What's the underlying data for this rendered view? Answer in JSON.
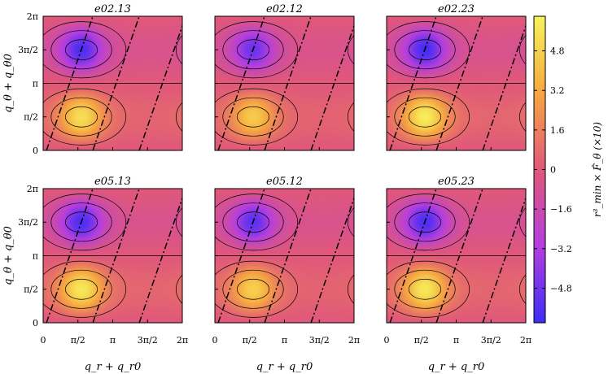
{
  "figure": {
    "xlabel": "q_r + q_r0",
    "ylabel": "q_θ + q_θ0",
    "colorbar_label": "r³_min × F̂_θ (×10)",
    "colorbar_ticks": [
      "4.8",
      "3.2",
      "1.6",
      "0",
      "−1.6",
      "−3.2",
      "−4.8"
    ],
    "x_tick_labels": [
      "0",
      "π/2",
      "π",
      "3π/2",
      "2π"
    ],
    "y_tick_labels": [
      "0",
      "π/2",
      "π",
      "3π/2",
      "2π"
    ]
  },
  "colors": {
    "max": "#f6f35a",
    "high": "#f6a641",
    "mid": "#e0587a",
    "low": "#b43ee0",
    "min": "#3d2cf5"
  },
  "chart_data": [
    {
      "type": "heatmap",
      "title": "e02.13",
      "xlim": [
        0,
        6.283
      ],
      "ylim": [
        0,
        6.283
      ],
      "vmin": -6.2,
      "vmax": 6.2,
      "peak": 5.4,
      "trough": -5.8
    },
    {
      "type": "heatmap",
      "title": "e02.12",
      "xlim": [
        0,
        6.283
      ],
      "ylim": [
        0,
        6.283
      ],
      "vmin": -6.2,
      "vmax": 6.2,
      "peak": 4.6,
      "trough": -5.0
    },
    {
      "type": "heatmap",
      "title": "e02.23",
      "xlim": [
        0,
        6.283
      ],
      "ylim": [
        0,
        6.283
      ],
      "vmin": -6.2,
      "vmax": 6.2,
      "peak": 6.0,
      "trough": -6.0
    },
    {
      "type": "heatmap",
      "title": "e05.13",
      "xlim": [
        0,
        6.283
      ],
      "ylim": [
        0,
        6.283
      ],
      "vmin": -6.2,
      "vmax": 6.2,
      "peak": 5.8,
      "trough": -5.8
    },
    {
      "type": "heatmap",
      "title": "e05.12",
      "xlim": [
        0,
        6.283
      ],
      "ylim": [
        0,
        6.283
      ],
      "vmin": -6.2,
      "vmax": 6.2,
      "peak": 4.8,
      "trough": -5.4
    },
    {
      "type": "heatmap",
      "title": "e05.23",
      "xlim": [
        0,
        6.283
      ],
      "ylim": [
        0,
        6.283
      ],
      "vmin": -6.2,
      "vmax": 6.2,
      "peak": 5.8,
      "trough": -5.8
    }
  ]
}
